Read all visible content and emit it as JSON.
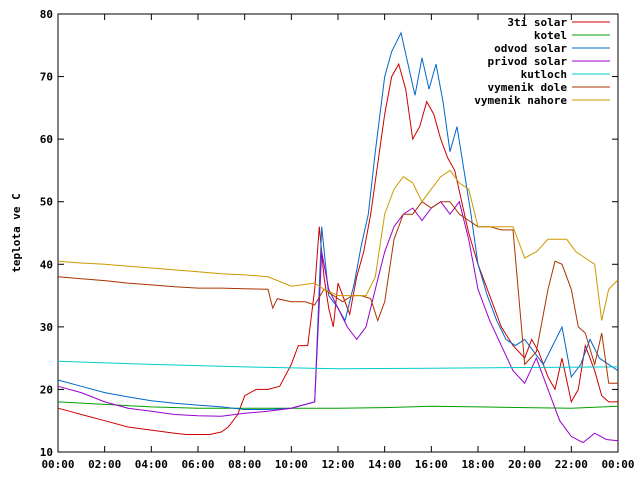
{
  "chart_data": {
    "type": "line",
    "title": "",
    "xlabel": "",
    "ylabel": "teplota ve C",
    "xlim": [
      0,
      24
    ],
    "ylim": [
      10,
      80
    ],
    "x_ticks": [
      "00:00",
      "02:00",
      "04:00",
      "06:00",
      "08:00",
      "10:00",
      "12:00",
      "14:00",
      "16:00",
      "18:00",
      "20:00",
      "22:00",
      "00:00"
    ],
    "y_ticks": [
      "10",
      "20",
      "30",
      "40",
      "50",
      "60",
      "70",
      "80"
    ],
    "grid": false,
    "legend": "top-right",
    "series": [
      {
        "name": "3ti solar",
        "color": "#cc0000",
        "x": [
          0,
          0.5,
          1,
          2,
          3,
          4,
          5,
          5.5,
          6,
          6.5,
          7,
          7.3,
          7.7,
          8,
          8.5,
          9,
          9.5,
          10,
          10.3,
          10.7,
          11,
          11.2,
          11.4,
          11.6,
          11.8,
          12,
          12.2,
          12.5,
          12.8,
          13.1,
          13.4,
          13.7,
          14,
          14.3,
          14.6,
          14.9,
          15.2,
          15.5,
          15.8,
          16.1,
          16.4,
          16.7,
          17,
          17.3,
          17.6,
          18,
          18.5,
          19,
          19.5,
          20,
          20.3,
          20.6,
          21,
          21.3,
          21.6,
          22,
          22.3,
          22.6,
          23,
          23.3,
          23.6,
          24
        ],
        "y": [
          17,
          16.5,
          16,
          15,
          14,
          13.5,
          13,
          12.8,
          12.8,
          12.8,
          13.2,
          14,
          16,
          19,
          20,
          20,
          20.5,
          24,
          27,
          27,
          36,
          46,
          38,
          33,
          30,
          37,
          35,
          32,
          38,
          42,
          48,
          56,
          64,
          70,
          72,
          68,
          60,
          62,
          66,
          64,
          60,
          57,
          55,
          50,
          45,
          40,
          35,
          30,
          27,
          25,
          28,
          26,
          22,
          20,
          25,
          18,
          20,
          27,
          23,
          19,
          18,
          18
        ]
      },
      {
        "name": "kotel",
        "color": "#00a000",
        "x": [
          0,
          2,
          4,
          6,
          8,
          10,
          12,
          14,
          16,
          18,
          20,
          22,
          24
        ],
        "y": [
          18,
          17.6,
          17.2,
          17,
          17,
          17,
          17,
          17.1,
          17.3,
          17.2,
          17.1,
          17,
          17.3
        ]
      },
      {
        "name": "odvod solar",
        "color": "#0066cc",
        "x": [
          0,
          1,
          2,
          3,
          4,
          5,
          6,
          7,
          8,
          9,
          10,
          11,
          11.3,
          11.6,
          12,
          12.3,
          12.7,
          13,
          13.3,
          13.6,
          14,
          14.3,
          14.7,
          15,
          15.3,
          15.6,
          15.9,
          16.2,
          16.5,
          16.8,
          17.1,
          17.4,
          17.7,
          18,
          18.4,
          18.8,
          19.2,
          19.6,
          20,
          20.4,
          20.8,
          21.2,
          21.6,
          22,
          22.4,
          22.8,
          23.2,
          23.6,
          24
        ],
        "y": [
          21.5,
          20.5,
          19.5,
          18.8,
          18.2,
          17.8,
          17.5,
          17.2,
          16.8,
          16.8,
          17,
          18,
          46,
          35,
          33,
          31,
          37,
          43,
          48,
          58,
          70,
          74,
          77,
          72,
          67,
          73,
          68,
          72,
          66,
          58,
          62,
          55,
          48,
          40,
          35,
          31,
          28,
          27,
          28,
          26,
          24,
          27,
          30,
          22,
          24,
          28,
          25,
          24,
          23
        ]
      },
      {
        "name": "privod solar",
        "color": "#9900cc",
        "x": [
          0,
          1,
          2,
          3,
          4,
          5,
          6,
          7,
          8,
          9,
          10,
          11,
          11.3,
          11.6,
          12,
          12.4,
          12.8,
          13.2,
          13.6,
          14,
          14.4,
          14.8,
          15.2,
          15.6,
          16,
          16.4,
          16.8,
          17.2,
          17.6,
          18,
          18.5,
          19,
          19.5,
          20,
          20.5,
          21,
          21.5,
          22,
          22.5,
          23,
          23.5,
          24
        ],
        "y": [
          20.5,
          19.5,
          18,
          17,
          16.5,
          16,
          15.8,
          15.7,
          16.2,
          16.5,
          17,
          18,
          42,
          36,
          33,
          30,
          28,
          30,
          36,
          42,
          46,
          48,
          49,
          47,
          49,
          50,
          48,
          50,
          44,
          36,
          31,
          27,
          23,
          21,
          25,
          20,
          15,
          12.5,
          11.5,
          13,
          12,
          11.8
        ]
      },
      {
        "name": "kutloch",
        "color": "#00cccc",
        "x": [
          0,
          4,
          8,
          12,
          16,
          20,
          24
        ],
        "y": [
          24.5,
          24,
          23.6,
          23.3,
          23.4,
          23.5,
          23.6
        ]
      },
      {
        "name": "vymenik dole",
        "color": "#aa3300",
        "x": [
          0,
          1,
          2,
          3,
          4,
          5,
          6,
          7,
          8,
          9,
          9.2,
          9.4,
          10,
          10.6,
          11,
          11.4,
          11.8,
          12.2,
          12.6,
          13,
          13.4,
          13.7,
          14,
          14.4,
          14.8,
          15.2,
          15.6,
          16,
          16.4,
          16.8,
          17.2,
          17.6,
          18,
          18.5,
          19,
          19.5,
          20,
          20.5,
          21,
          21.3,
          21.6,
          22,
          22.3,
          22.6,
          23,
          23.3,
          23.6,
          24
        ],
        "y": [
          38,
          37.7,
          37.4,
          37,
          36.7,
          36.4,
          36.2,
          36.2,
          36.1,
          36,
          33,
          34.5,
          34,
          34,
          33.5,
          36,
          35,
          34,
          35,
          35,
          34.5,
          31,
          34,
          44,
          48,
          48,
          50,
          49,
          50,
          50,
          48,
          47,
          46,
          46,
          45.5,
          45.5,
          24,
          26,
          36,
          40.5,
          40,
          36,
          30,
          29,
          24,
          29,
          21,
          21
        ]
      },
      {
        "name": "vymenik nahore",
        "color": "#cc9900",
        "x": [
          0,
          1,
          2,
          3,
          4,
          5,
          6,
          7,
          8,
          9,
          10,
          11,
          11.4,
          12,
          12.4,
          12.8,
          13.2,
          13.6,
          14,
          14.4,
          14.8,
          15.2,
          15.6,
          16,
          16.4,
          16.8,
          17.2,
          17.6,
          18,
          18.5,
          19,
          19.5,
          20,
          20.5,
          21,
          21.4,
          21.8,
          22.2,
          22.6,
          23,
          23.3,
          23.6,
          24
        ],
        "y": [
          40.5,
          40.2,
          40,
          39.7,
          39.4,
          39.1,
          38.8,
          38.5,
          38.3,
          38,
          36.5,
          37,
          36,
          35,
          35,
          35,
          35,
          38,
          48,
          52,
          54,
          53,
          50,
          52,
          54,
          55,
          53,
          52,
          46,
          46,
          46,
          46,
          41,
          42,
          44,
          44,
          44,
          42,
          41,
          40,
          31,
          36,
          37.5
        ]
      }
    ]
  }
}
